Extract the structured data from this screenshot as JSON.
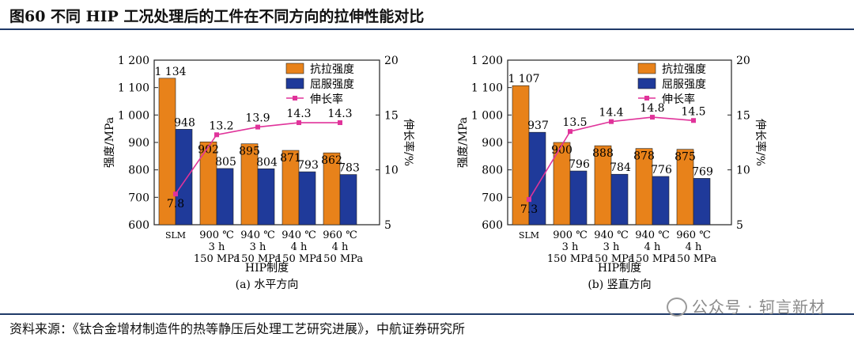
{
  "figure": {
    "title": "图60 不同 HIP 工况处理后的工件在不同方向的拉伸性能对比",
    "source": "资料来源：《钛合金增材制造件的热等静压后处理工艺研究进展》，中航证券研究所",
    "watermark": "公众号 · 轲言新材",
    "watermark_icon": "wechat-logo-icon"
  },
  "colors": {
    "tensile": "#e8821a",
    "yield": "#1f3a9a",
    "elongation": "#e0339a",
    "rule": "#1f3a68"
  },
  "chart_data": [
    {
      "type": "bar",
      "caption": "(a) 水平方向",
      "categories": [
        [
          "SLM"
        ],
        [
          "900 ℃",
          "3 h",
          "150 MPa"
        ],
        [
          "940 ℃",
          "3 h",
          "150 MPa"
        ],
        [
          "940 ℃",
          "4 h",
          "150 MPa"
        ],
        [
          "960 ℃",
          "4 h",
          "150 MPa"
        ]
      ],
      "xlabel": "HIP制度",
      "ylabel": "强度/MPa",
      "y2label": "伸长率/%",
      "ylim": [
        600,
        1200
      ],
      "yticks": [
        600,
        700,
        800,
        900,
        1000,
        1100,
        1200
      ],
      "ytick_labels": [
        "600",
        "700",
        "800",
        "900",
        "1 000",
        "1 100",
        "1 200"
      ],
      "y2lim": [
        5,
        20
      ],
      "y2ticks": [
        5,
        10,
        15,
        20
      ],
      "legend_position": "top-right",
      "series": [
        {
          "name": "抗拉强度",
          "kind": "bar",
          "values": [
            1134,
            902,
            895,
            871,
            862
          ],
          "labels": [
            "1 134",
            "902",
            "895",
            "871",
            "862"
          ]
        },
        {
          "name": "屈服强度",
          "kind": "bar",
          "values": [
            948,
            805,
            804,
            793,
            783
          ],
          "labels": [
            "948",
            "805",
            "804",
            "793",
            "783"
          ]
        },
        {
          "name": "伸长率",
          "kind": "line",
          "axis": "right",
          "values": [
            7.8,
            13.2,
            13.9,
            14.3,
            14.3
          ],
          "labels": [
            "7.8",
            "13.2",
            "13.9",
            "14.3",
            "14.3"
          ]
        }
      ]
    },
    {
      "type": "bar",
      "caption": "(b) 竖直方向",
      "categories": [
        [
          "SLM"
        ],
        [
          "900 ℃",
          "3 h",
          "150 MPa"
        ],
        [
          "940 ℃",
          "3 h",
          "150 MPa"
        ],
        [
          "940 ℃",
          "4 h",
          "150 MPa"
        ],
        [
          "960 ℃",
          "4 h",
          "150 MPa"
        ]
      ],
      "xlabel": "HIP制度",
      "ylabel": "强度/MPa",
      "y2label": "伸长率/%",
      "ylim": [
        600,
        1200
      ],
      "yticks": [
        600,
        700,
        800,
        900,
        1000,
        1100,
        1200
      ],
      "ytick_labels": [
        "600",
        "700",
        "800",
        "900",
        "1 000",
        "1 100",
        "1 200"
      ],
      "y2lim": [
        5,
        20
      ],
      "y2ticks": [
        5,
        10,
        15,
        20
      ],
      "legend_position": "top-right",
      "series": [
        {
          "name": "抗拉强度",
          "kind": "bar",
          "values": [
            1107,
            900,
            888,
            878,
            875
          ],
          "labels": [
            "1 107",
            "900",
            "888",
            "878",
            "875"
          ]
        },
        {
          "name": "屈服强度",
          "kind": "bar",
          "values": [
            937,
            796,
            784,
            776,
            769
          ],
          "labels": [
            "937",
            "796",
            "784",
            "776",
            "769"
          ]
        },
        {
          "name": "伸长率",
          "kind": "line",
          "axis": "right",
          "values": [
            7.3,
            13.5,
            14.4,
            14.8,
            14.5
          ],
          "labels": [
            "7.3",
            "13.5",
            "14.4",
            "14.8",
            "14.5"
          ]
        }
      ]
    }
  ]
}
